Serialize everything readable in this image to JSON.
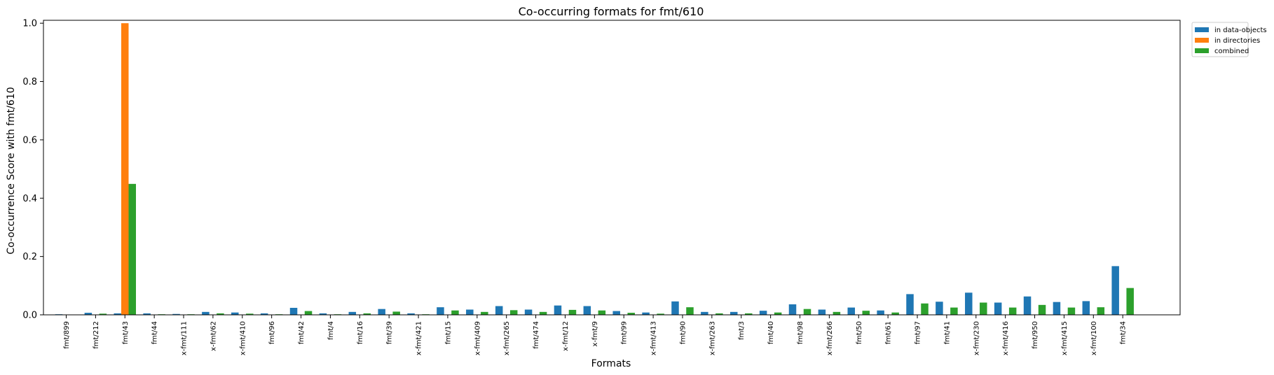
{
  "chart_data": {
    "type": "bar",
    "title": "Co-occurring formats for fmt/610",
    "xlabel": "Formats",
    "ylabel": "Co-occurrence Score with fmt/610",
    "ylim": [
      0,
      1.01
    ],
    "yticks": [
      "0.0",
      "0.2",
      "0.4",
      "0.6",
      "0.8",
      "1.0"
    ],
    "ytick_values": [
      0,
      0.2,
      0.4,
      0.6,
      0.8,
      1.0
    ],
    "legend_position": "upper-right outside",
    "grid": false,
    "categories": [
      "fmt/899",
      "fmt/212",
      "fmt/43",
      "fmt/44",
      "x-fmt/111",
      "x-fmt/62",
      "x-fmt/410",
      "fmt/96",
      "fmt/42",
      "fmt/4",
      "fmt/16",
      "fmt/39",
      "x-fmt/421",
      "fmt/15",
      "x-fmt/409",
      "x-fmt/265",
      "fmt/474",
      "x-fmt/12",
      "x-fmt/9",
      "fmt/99",
      "x-fmt/413",
      "fmt/90",
      "x-fmt/263",
      "fmt/3",
      "fmt/40",
      "fmt/98",
      "x-fmt/266",
      "fmt/50",
      "fmt/61",
      "fmt/97",
      "fmt/41",
      "x-fmt/230",
      "x-fmt/416",
      "fmt/950",
      "x-fmt/415",
      "x-fmt/100",
      "fmt/34"
    ],
    "series": [
      {
        "name": "in data-objects",
        "color": "#1f77b4",
        "values": [
          0.002,
          0.007,
          0.005,
          0.005,
          0.003,
          0.01,
          0.008,
          0.005,
          0.024,
          0.005,
          0.01,
          0.02,
          0.005,
          0.026,
          0.018,
          0.03,
          0.018,
          0.032,
          0.03,
          0.013,
          0.008,
          0.046,
          0.01,
          0.01,
          0.014,
          0.036,
          0.018,
          0.025,
          0.015,
          0.071,
          0.045,
          0.076,
          0.042,
          0.063,
          0.044,
          0.047,
          0.167
        ]
      },
      {
        "name": "in directories",
        "color": "#ff7f0e",
        "values": [
          0,
          0,
          1.0,
          0,
          0,
          0,
          0,
          0,
          0,
          0,
          0,
          0,
          0,
          0,
          0,
          0,
          0,
          0,
          0,
          0,
          0,
          0,
          0,
          0,
          0,
          0,
          0,
          0,
          0,
          0,
          0,
          0,
          0,
          0,
          0,
          0,
          0
        ]
      },
      {
        "name": "combined",
        "color": "#2ca02c",
        "values": [
          0.001,
          0.004,
          0.449,
          0.002,
          0.002,
          0.005,
          0.004,
          0.002,
          0.013,
          0.002,
          0.005,
          0.011,
          0.002,
          0.015,
          0.01,
          0.016,
          0.01,
          0.017,
          0.015,
          0.007,
          0.004,
          0.026,
          0.005,
          0.005,
          0.008,
          0.02,
          0.01,
          0.014,
          0.008,
          0.039,
          0.025,
          0.042,
          0.025,
          0.034,
          0.025,
          0.026,
          0.092
        ]
      }
    ]
  }
}
